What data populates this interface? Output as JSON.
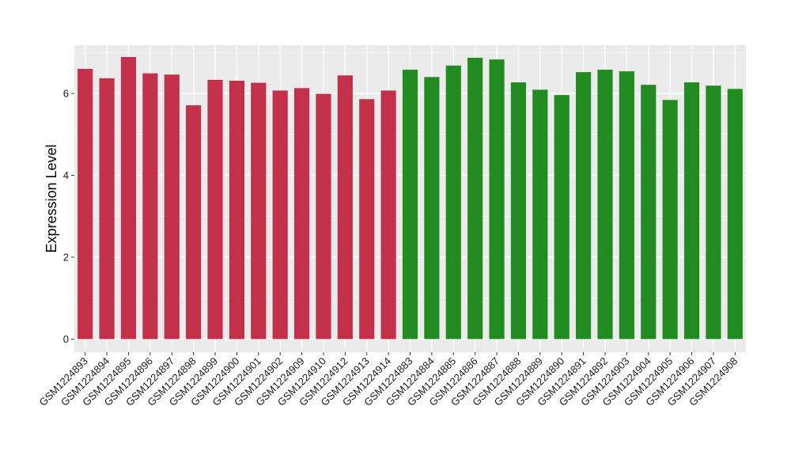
{
  "chart_data": {
    "type": "bar",
    "title": "",
    "xlabel": "",
    "ylabel": "Expression Level",
    "ylim": [
      -0.32,
      7.18
    ],
    "yticks": [
      0,
      2,
      4,
      6
    ],
    "grid": true,
    "legend": "none",
    "colors": {
      "panel_background": "#EBEBEB",
      "grid_major": "#FFFFFF",
      "grid_minor": "#F5F5F5",
      "tick_color": "#333333"
    },
    "categories": [
      "GSM1224893",
      "GSM1224894",
      "GSM1224895",
      "GSM1224896",
      "GSM1224897",
      "GSM1224898",
      "GSM1224899",
      "GSM1224900",
      "GSM1224901",
      "GSM1224902",
      "GSM1224909",
      "GSM1224910",
      "GSM1224912",
      "GSM1224913",
      "GSM1224914",
      "GSM1224883",
      "GSM1224884",
      "GSM1224885",
      "GSM1224886",
      "GSM1224887",
      "GSM1224888",
      "GSM1224889",
      "GSM1224890",
      "GSM1224891",
      "GSM1224892",
      "GSM1224903",
      "GSM1224904",
      "GSM1224905",
      "GSM1224906",
      "GSM1224907",
      "GSM1224908"
    ],
    "values": [
      6.6,
      6.37,
      6.89,
      6.49,
      6.46,
      5.71,
      6.33,
      6.31,
      6.26,
      6.07,
      6.13,
      5.99,
      6.44,
      5.86,
      6.07,
      6.58,
      6.4,
      6.68,
      6.87,
      6.83,
      6.27,
      6.09,
      5.96,
      6.52,
      6.58,
      6.54,
      6.21,
      5.84,
      6.27,
      6.19,
      6.11
    ],
    "bar_colors": [
      "#C23149",
      "#C23149",
      "#C23149",
      "#C23149",
      "#C23149",
      "#C23149",
      "#C23149",
      "#C23149",
      "#C23149",
      "#C23149",
      "#C23149",
      "#C23149",
      "#C23149",
      "#C23149",
      "#C23149",
      "#228B22",
      "#228B22",
      "#228B22",
      "#228B22",
      "#228B22",
      "#228B22",
      "#228B22",
      "#228B22",
      "#228B22",
      "#228B22",
      "#228B22",
      "#228B22",
      "#228B22",
      "#228B22",
      "#228B22",
      "#228B22"
    ]
  }
}
